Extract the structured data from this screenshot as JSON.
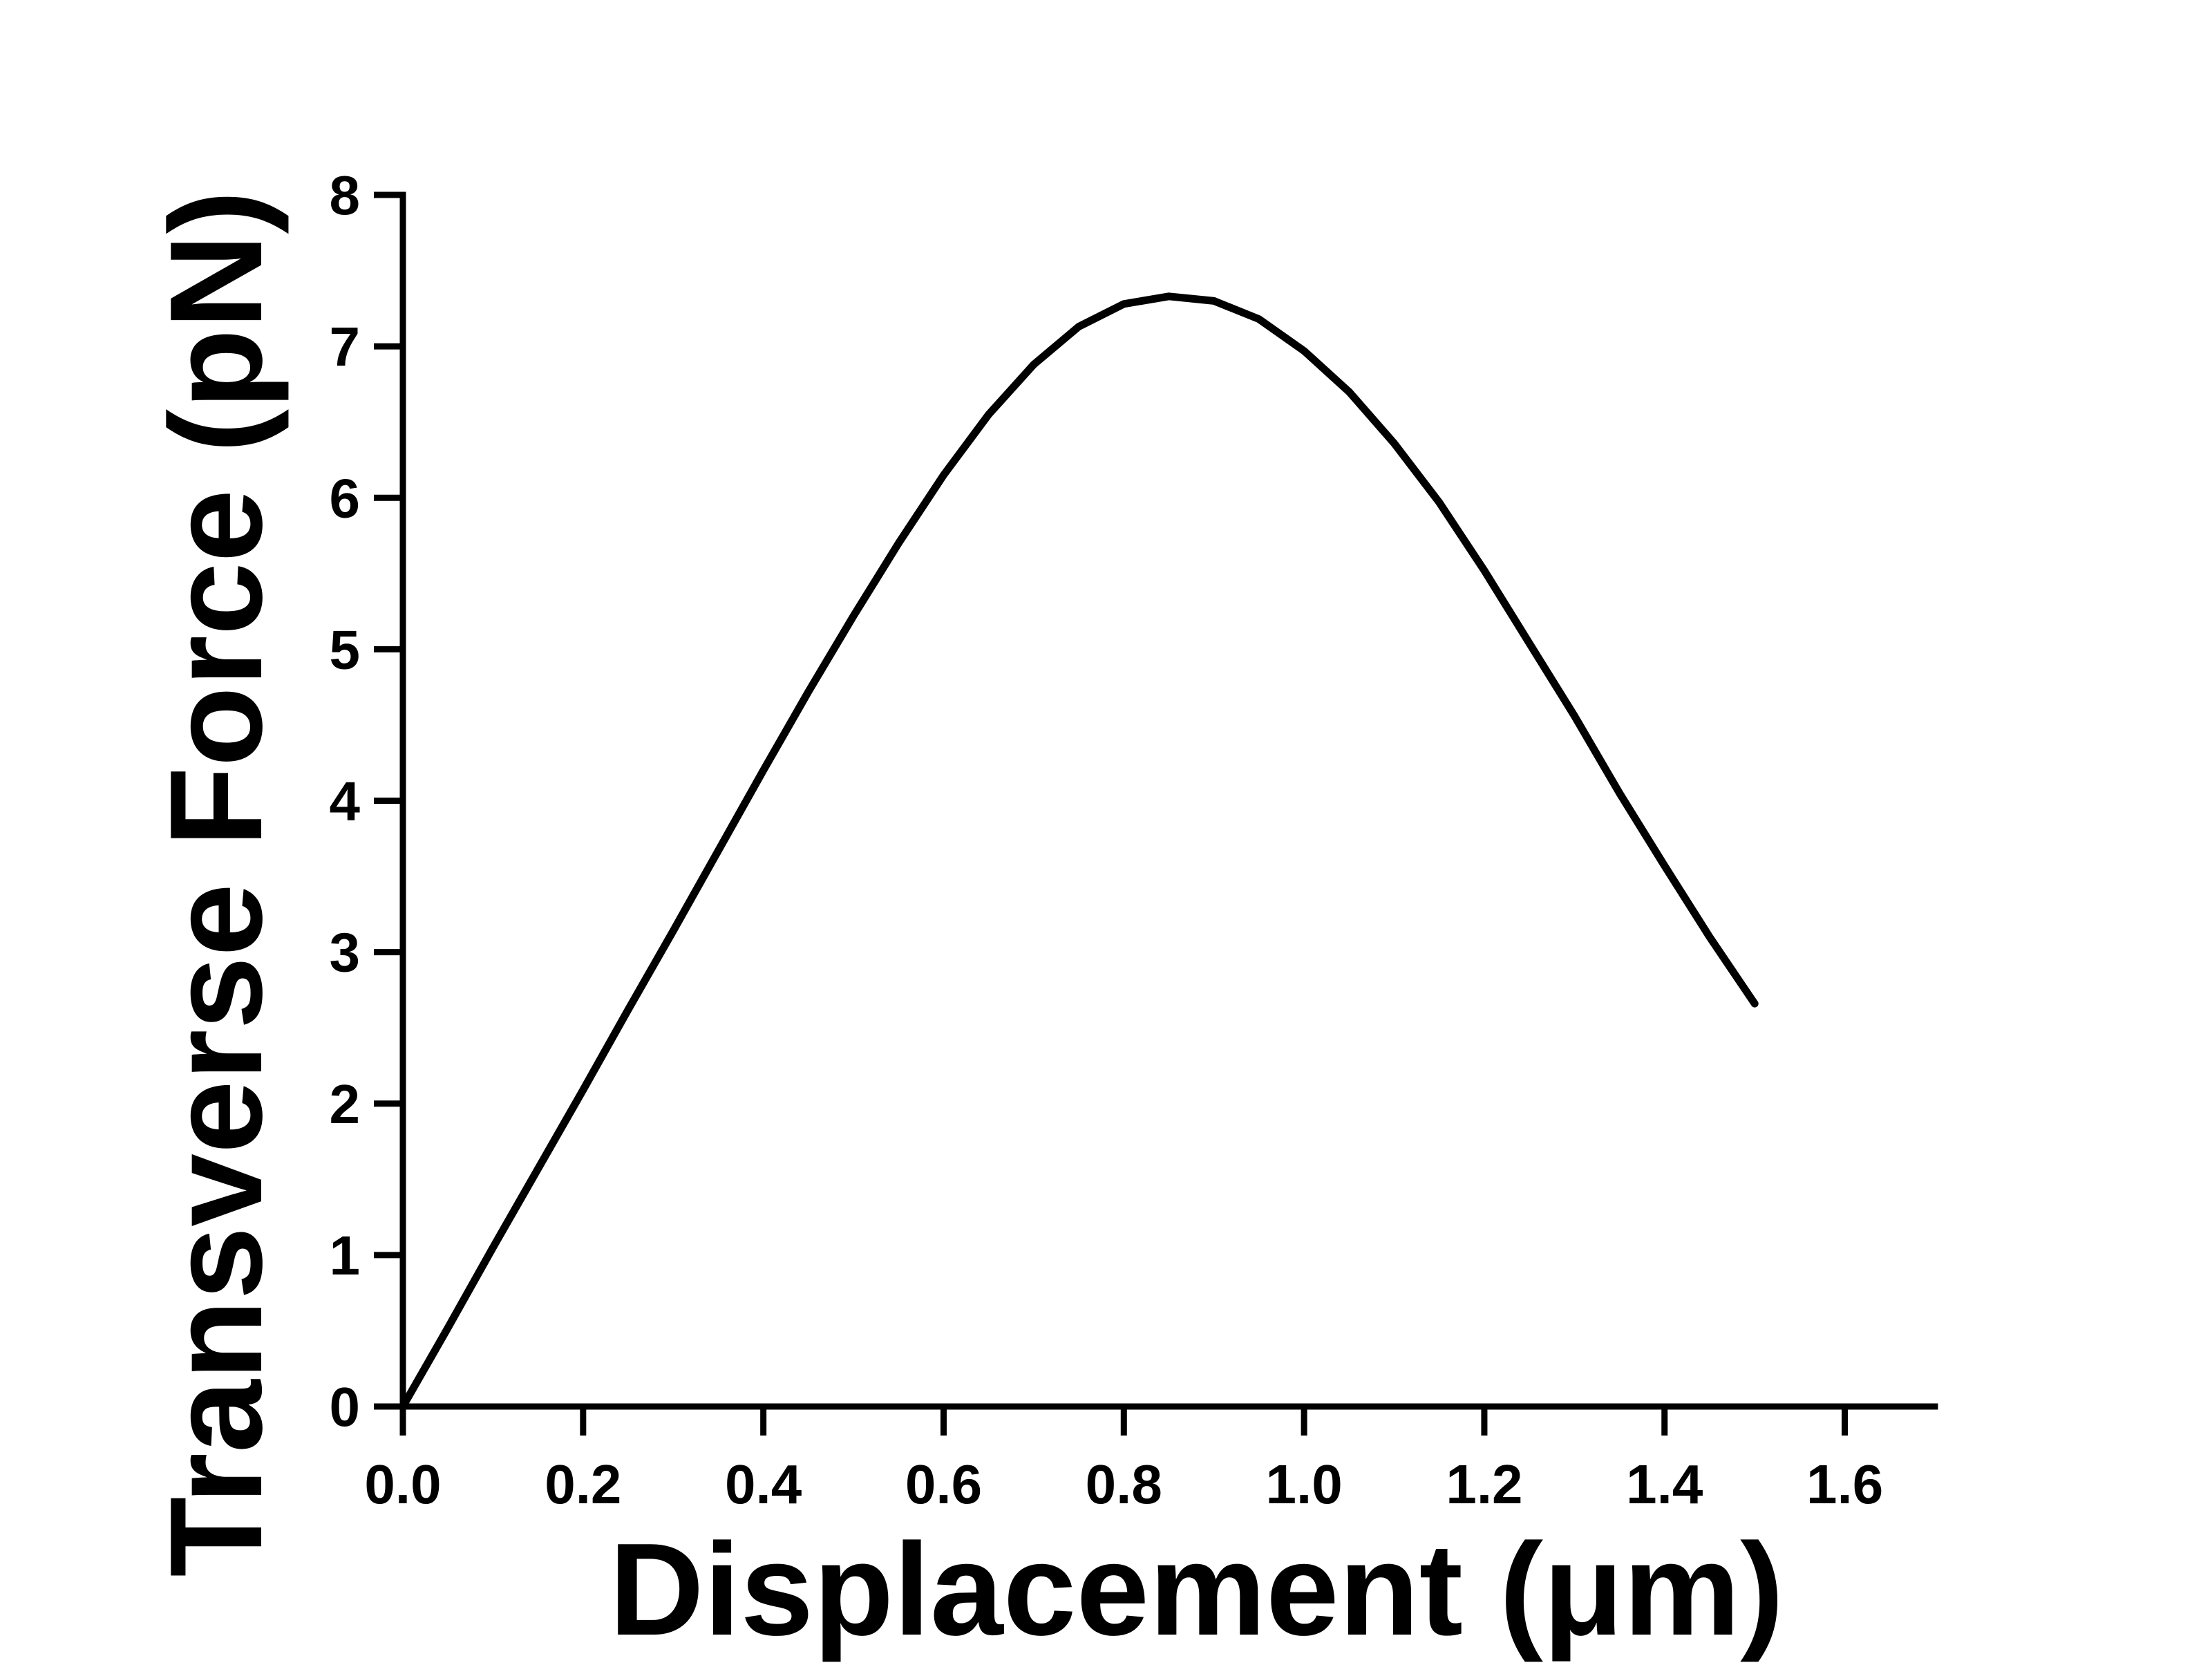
{
  "chart_data": {
    "type": "line",
    "title": "",
    "xlabel": "Displacement (μm)",
    "ylabel": "Transverse Force (pN)",
    "xlim": [
      0.0,
      1.7
    ],
    "ylim": [
      0,
      8
    ],
    "x_ticks": [
      "0.0",
      "0.2",
      "0.4",
      "0.6",
      "0.8",
      "1.0",
      "1.2",
      "1.4",
      "1.6"
    ],
    "y_ticks": [
      "0",
      "1",
      "2",
      "3",
      "4",
      "5",
      "6",
      "7",
      "8"
    ],
    "grid": false,
    "legend": "none",
    "series": [
      {
        "color": "#000000",
        "x": [
          0.0,
          0.05,
          0.1,
          0.15,
          0.2,
          0.25,
          0.3,
          0.35,
          0.4,
          0.45,
          0.5,
          0.55,
          0.6,
          0.65,
          0.7,
          0.75,
          0.8,
          0.85,
          0.9,
          0.95,
          1.0,
          1.05,
          1.1,
          1.15,
          1.2,
          1.25,
          1.3,
          1.35,
          1.4,
          1.45,
          1.5
        ],
        "y": [
          0.0,
          0.52,
          1.05,
          1.57,
          2.09,
          2.62,
          3.14,
          3.67,
          4.2,
          4.72,
          5.22,
          5.7,
          6.15,
          6.55,
          6.88,
          7.13,
          7.28,
          7.33,
          7.3,
          7.18,
          6.97,
          6.7,
          6.36,
          5.97,
          5.52,
          5.04,
          4.56,
          4.05,
          3.57,
          3.1,
          2.66
        ]
      }
    ]
  }
}
